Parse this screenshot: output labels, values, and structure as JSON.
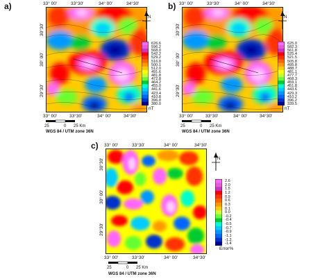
{
  "panels": {
    "a": {
      "letter": "a)",
      "top_ticks": [
        "33° 00'",
        "33°30'",
        "34° 00'",
        "34°30'"
      ],
      "bottom_ticks": [
        "33° 00'",
        "33°30'",
        "34° 00'",
        "34°30'"
      ],
      "left_ticks": [
        "30°30'",
        "30° 00'",
        "29°30'"
      ],
      "legend_values": [
        "626.6",
        "596.2",
        "568.0",
        "542.2",
        "529.2",
        "516.0",
        "500.1",
        "512.0",
        "491.6",
        "481.8",
        "472.8",
        "464.2",
        "455.0",
        "441.6",
        "423.4",
        "410.8",
        "396.0",
        "380.0"
      ],
      "unit": "nT",
      "footer": "WGS 84 / UTM zone 36N"
    },
    "b": {
      "letter": "b)",
      "top_ticks": [
        "33° 00'",
        "33°30'",
        "34° 00'",
        "34°30'"
      ],
      "bottom_ticks": [
        "33° 00'",
        "33°30'",
        "34° 00'",
        "34°30'"
      ],
      "left_ticks": [
        "30°30'",
        "30° 00'",
        "29°30'"
      ],
      "legend_values": [
        "625.0",
        "582.3",
        "561.8",
        "525.4",
        "521.5",
        "505.8",
        "495.8",
        "488.7",
        "481.1",
        "477.7",
        "468.3",
        "459.1",
        "451.8",
        "443.6",
        "429.3",
        "410.2",
        "396.2",
        "339.5"
      ],
      "unit": "nT",
      "footer": "WGS 84 / UTM zone 36N"
    },
    "c": {
      "letter": "c)",
      "top_ticks": [
        "33° 00'",
        "33°30'",
        "34° 00'",
        "34°30'"
      ],
      "bottom_ticks": [
        "33° 00'",
        "33°30'",
        "34° 00'",
        "34°30'"
      ],
      "left_ticks": [
        "30°30'",
        "30° 00'",
        "29°30'"
      ],
      "legend_values": [
        "2.6",
        "2.0",
        "1.5",
        "1.2",
        "0.9",
        "0.6",
        "0.3",
        "0.1",
        "0.0",
        "-0.2",
        "-0.4",
        "-0.5",
        "-0.7",
        "-0.9",
        "-1.1",
        "-1.2",
        "-1.4"
      ],
      "unit": "Error%",
      "footer": "WGS 84 / UTM zone 36N"
    }
  },
  "scale_bar": {
    "labels": [
      "25",
      "0",
      "25 Km"
    ]
  },
  "north_label": "N",
  "colors": {
    "legend_ramp": [
      "#ff66ff",
      "#e65cd6",
      "#cc33cc",
      "#ff0000",
      "#ff3300",
      "#ff6600",
      "#ff9900",
      "#ffcc00",
      "#ffff00",
      "#ccff33",
      "#66ff33",
      "#00cc33",
      "#00ffcc",
      "#00ccff",
      "#0099ff",
      "#0066ff",
      "#0033cc",
      "#000099"
    ]
  }
}
